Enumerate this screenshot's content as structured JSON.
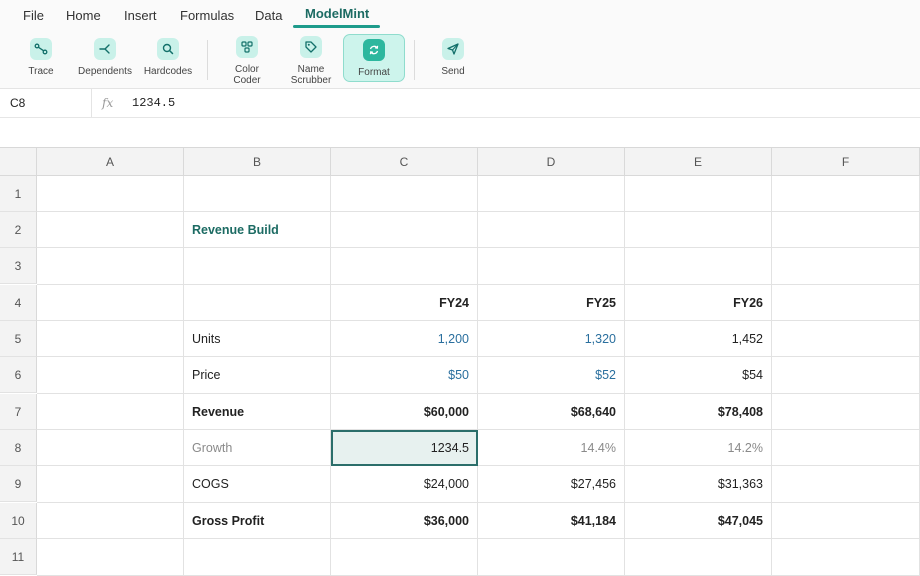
{
  "menu": {
    "tabs": [
      {
        "label": "File"
      },
      {
        "label": "Home"
      },
      {
        "label": "Insert"
      },
      {
        "label": "Formulas"
      },
      {
        "label": "Data"
      },
      {
        "label": "ModelMint"
      }
    ],
    "active_tab": "ModelMint"
  },
  "ribbon": {
    "buttons": [
      {
        "label": "Trace",
        "icon": "trace-icon"
      },
      {
        "label": "Dependents",
        "icon": "dependents-icon"
      },
      {
        "label": "Hardcodes",
        "icon": "search-icon"
      },
      {
        "label1": "Color",
        "label2": "Coder",
        "icon": "color-coder-icon"
      },
      {
        "label1": "Name",
        "label2": "Scrubber",
        "icon": "tag-icon"
      },
      {
        "label": "Format",
        "icon": "refresh-icon",
        "active": true
      },
      {
        "label": "Send",
        "icon": "send-icon"
      }
    ]
  },
  "formula_bar": {
    "cell_ref": "C8",
    "fx_label": "fx",
    "value": "1234.5"
  },
  "grid": {
    "columns": [
      "A",
      "B",
      "C",
      "D",
      "E",
      "F"
    ],
    "rows": [
      "1",
      "2",
      "3",
      "4",
      "5",
      "6",
      "7",
      "8",
      "9",
      "10",
      "11"
    ],
    "cells": {
      "B2": "Revenue Build",
      "C4": "FY24",
      "D4": "FY25",
      "E4": "FY26",
      "B5": "Units",
      "C5": "1,200",
      "D5": "1,320",
      "E5": "1,452",
      "B6": "Price",
      "C6": "$50",
      "D6": "$52",
      "E6": "$54",
      "B7": "Revenue",
      "C7": "$60,000",
      "D7": "$68,640",
      "E7": "$78,408",
      "B8": "Growth",
      "C8": "1234.5",
      "D8": "14.4%",
      "E8": "14.2%",
      "B9": "COGS",
      "C9": "$24,000",
      "D9": "$27,456",
      "E9": "$31,363",
      "B10": "Gross Profit",
      "C10": "$36,000",
      "D10": "$41,184",
      "E10": "$47,045"
    },
    "selected_cell": "C8"
  },
  "colors": {
    "accent": "#1e9b8b",
    "title_text": "#1c6b63",
    "input_blue": "#2a6f9e",
    "selection_border": "#2b6e6a"
  }
}
